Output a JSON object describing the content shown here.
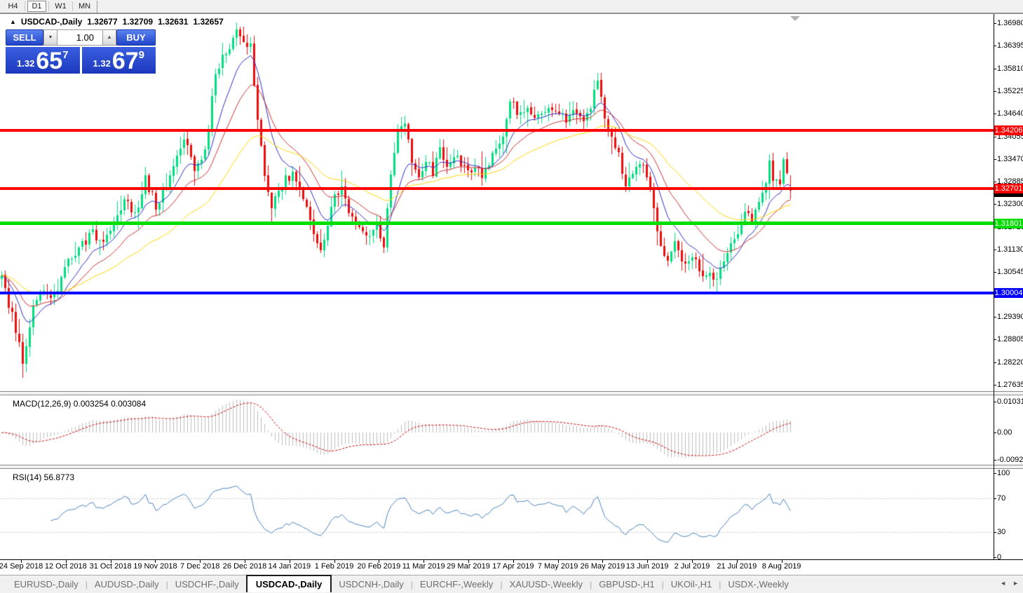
{
  "toolbar": {
    "timeframes": [
      {
        "label": "H4",
        "active": false
      },
      {
        "label": "D1",
        "active": true
      },
      {
        "label": "W1",
        "active": false
      },
      {
        "label": "MN",
        "active": false
      }
    ]
  },
  "icons": {
    "collapse_arrow": "▲",
    "spin_down": "▼",
    "spin_up": "▲",
    "tab_scroll_left": "◄",
    "tab_scroll_right": "►"
  },
  "chart": {
    "title": {
      "symbol": "USDCAD-,Daily",
      "open": "1.32677",
      "high": "1.32709",
      "low": "1.32631",
      "close": "1.32657"
    },
    "trade_panel": {
      "sell_label": "SELL",
      "buy_label": "BUY",
      "volume_value": "1.00",
      "sell_price": {
        "prefix": "1.32",
        "big": "65",
        "sup": "7"
      },
      "buy_price": {
        "prefix": "1.32",
        "big": "67",
        "sup": "9"
      }
    },
    "price_axis_labels": [
      "1.36980",
      "1.36395",
      "1.35810",
      "1.35225",
      "1.34640",
      "1.34055",
      "1.33470",
      "1.32885",
      "1.32300",
      "1.31715",
      "1.31130",
      "1.30545",
      "1.29390",
      "1.28805",
      "1.28220",
      "1.27635"
    ],
    "date_axis_labels": [
      "24 Sep 2018",
      "12 Oct 2018",
      "31 Oct 2018",
      "19 Nov 2018",
      "7 Dec 2018",
      "26 Dec 2018",
      "14 Jan 2019",
      "1 Feb 2019",
      "20 Feb 2019",
      "11 Mar 2019",
      "29 Mar 2019",
      "17 Apr 2019",
      "7 May 2019",
      "26 May 2019",
      "13 Jun 2019",
      "2 Jul 2019",
      "21 Jul 2019",
      "8 Aug 2019"
    ]
  },
  "macd_panel": {
    "label": "MACD(12,26,9) 0.003254 0.003084",
    "axis_labels": [
      "0.010311",
      "0.00",
      "-0.00920"
    ]
  },
  "rsi_panel": {
    "label": "RSI(14) 56.8773",
    "axis_labels": [
      "100",
      "70",
      "30",
      "0"
    ]
  },
  "tabbar": {
    "tabs": [
      {
        "label": "EURUSD-,Daily",
        "active": false
      },
      {
        "label": "AUDUSD-,Daily",
        "active": false
      },
      {
        "label": "USDCHF-,Daily",
        "active": false
      },
      {
        "label": "USDCAD-,Daily",
        "active": true
      },
      {
        "label": "USDCNH-,Daily",
        "active": false
      },
      {
        "label": "EURCHF-,Weekly",
        "active": false
      },
      {
        "label": "XAUUSD-,Weekly",
        "active": false
      },
      {
        "label": "GBPUSD-,H1",
        "active": false
      },
      {
        "label": "UKOil-,H1",
        "active": false
      },
      {
        "label": "USDX-,Weekly",
        "active": false
      }
    ]
  },
  "chart_data": {
    "type": "candlestick",
    "symbol": "USDCAD-",
    "period": "Daily",
    "ohlc_current": {
      "open": 1.32677,
      "high": 1.32709,
      "low": 1.32631,
      "close": 1.32657
    },
    "y_axis": {
      "min": 1.27635,
      "max": 1.3698,
      "tick_step": 0.00585
    },
    "x_axis": {
      "first_label": "24 Sep 2018",
      "last_label": "8 Aug 2019"
    },
    "candle_count": 226,
    "bull_color": "#00DF7E",
    "bear_color": "#EE0D0D",
    "noise_seed": 20190815,
    "close_waypoints": [
      [
        0,
        1.3035
      ],
      [
        2,
        1.2975
      ],
      [
        6,
        1.283
      ],
      [
        9,
        1.296
      ],
      [
        12,
        1.3005
      ],
      [
        15,
        1.2995
      ],
      [
        18,
        1.3065
      ],
      [
        22,
        1.3115
      ],
      [
        26,
        1.3155
      ],
      [
        29,
        1.3125
      ],
      [
        32,
        1.3185
      ],
      [
        35,
        1.3245
      ],
      [
        38,
        1.3205
      ],
      [
        41,
        1.3295
      ],
      [
        44,
        1.3225
      ],
      [
        47,
        1.3285
      ],
      [
        50,
        1.3365
      ],
      [
        52,
        1.3405
      ],
      [
        55,
        1.3315
      ],
      [
        58,
        1.3365
      ],
      [
        61,
        1.3565
      ],
      [
        64,
        1.3625
      ],
      [
        67,
        1.3675
      ],
      [
        69,
        1.3655
      ],
      [
        71,
        1.3635
      ],
      [
        73,
        1.345
      ],
      [
        75,
        1.3295
      ],
      [
        77,
        1.3215
      ],
      [
        79,
        1.3265
      ],
      [
        81,
        1.3295
      ],
      [
        83,
        1.3305
      ],
      [
        85,
        1.327
      ],
      [
        87,
        1.3225
      ],
      [
        89,
        1.3155
      ],
      [
        91,
        1.3105
      ],
      [
        93,
        1.3185
      ],
      [
        95,
        1.3245
      ],
      [
        97,
        1.3265
      ],
      [
        99,
        1.322
      ],
      [
        101,
        1.3185
      ],
      [
        103,
        1.3165
      ],
      [
        105,
        1.3145
      ],
      [
        107,
        1.3185
      ],
      [
        109,
        1.3125
      ],
      [
        111,
        1.3305
      ],
      [
        113,
        1.3425
      ],
      [
        115,
        1.3445
      ],
      [
        117,
        1.335
      ],
      [
        119,
        1.3295
      ],
      [
        121,
        1.3345
      ],
      [
        123,
        1.331
      ],
      [
        125,
        1.3375
      ],
      [
        127,
        1.3335
      ],
      [
        129,
        1.3355
      ],
      [
        131,
        1.3335
      ],
      [
        133,
        1.331
      ],
      [
        135,
        1.3335
      ],
      [
        137,
        1.3305
      ],
      [
        139,
        1.3335
      ],
      [
        141,
        1.3365
      ],
      [
        143,
        1.3395
      ],
      [
        145,
        1.3505
      ],
      [
        147,
        1.347
      ],
      [
        149,
        1.3465
      ],
      [
        151,
        1.3475
      ],
      [
        153,
        1.3455
      ],
      [
        155,
        1.3475
      ],
      [
        157,
        1.3465
      ],
      [
        159,
        1.347
      ],
      [
        161,
        1.3445
      ],
      [
        163,
        1.3465
      ],
      [
        165,
        1.3445
      ],
      [
        167,
        1.3455
      ],
      [
        169,
        1.3525
      ],
      [
        170,
        1.3555
      ],
      [
        172,
        1.3445
      ],
      [
        174,
        1.3405
      ],
      [
        176,
        1.3355
      ],
      [
        178,
        1.3285
      ],
      [
        180,
        1.3305
      ],
      [
        182,
        1.3345
      ],
      [
        184,
        1.3305
      ],
      [
        186,
        1.3225
      ],
      [
        188,
        1.3115
      ],
      [
        190,
        1.308
      ],
      [
        192,
        1.3125
      ],
      [
        194,
        1.3085
      ],
      [
        196,
        1.3095
      ],
      [
        198,
        1.3075
      ],
      [
        200,
        1.3055
      ],
      [
        202,
        1.3045
      ],
      [
        204,
        1.3045
      ],
      [
        206,
        1.3085
      ],
      [
        208,
        1.3125
      ],
      [
        210,
        1.3165
      ],
      [
        212,
        1.3205
      ],
      [
        214,
        1.3185
      ],
      [
        216,
        1.3225
      ],
      [
        218,
        1.3285
      ],
      [
        219,
        1.3335
      ],
      [
        220,
        1.3285
      ],
      [
        222,
        1.3295
      ],
      [
        223,
        1.3345
      ],
      [
        225,
        1.32657
      ]
    ],
    "moving_averages": [
      {
        "period": 10,
        "color": "#2B2BC8"
      },
      {
        "period": 20,
        "color": "#CC2F2F"
      },
      {
        "period": 45,
        "color": "#FFD400"
      }
    ],
    "horizontal_lines": [
      {
        "price": 1.34206,
        "label": "1.34206",
        "color": "#FF0000",
        "thickness": 4
      },
      {
        "price": 1.32701,
        "label": "1.32701",
        "color": "#FF0000",
        "thickness": 4
      },
      {
        "price": 1.31801,
        "label": "1.31801",
        "color": "#00DD00",
        "thickness": 5
      },
      {
        "price": 1.30004,
        "label": "1.30004",
        "color": "#0000FF",
        "thickness": 4
      }
    ],
    "indicators": {
      "macd": {
        "fast": 12,
        "slow": 26,
        "signal_period": 9,
        "value": 0.003254,
        "signal_value": 0.003084,
        "axis_max": 0.010311,
        "axis_min": -0.0092,
        "histogram_color": "#BDBDBD",
        "signal_color": "#CC0000"
      },
      "rsi": {
        "period": 14,
        "value": 56.8773,
        "levels": [
          70,
          30
        ],
        "line_color": "#4880BE",
        "axis_max": 100,
        "axis_min": 0
      }
    }
  }
}
